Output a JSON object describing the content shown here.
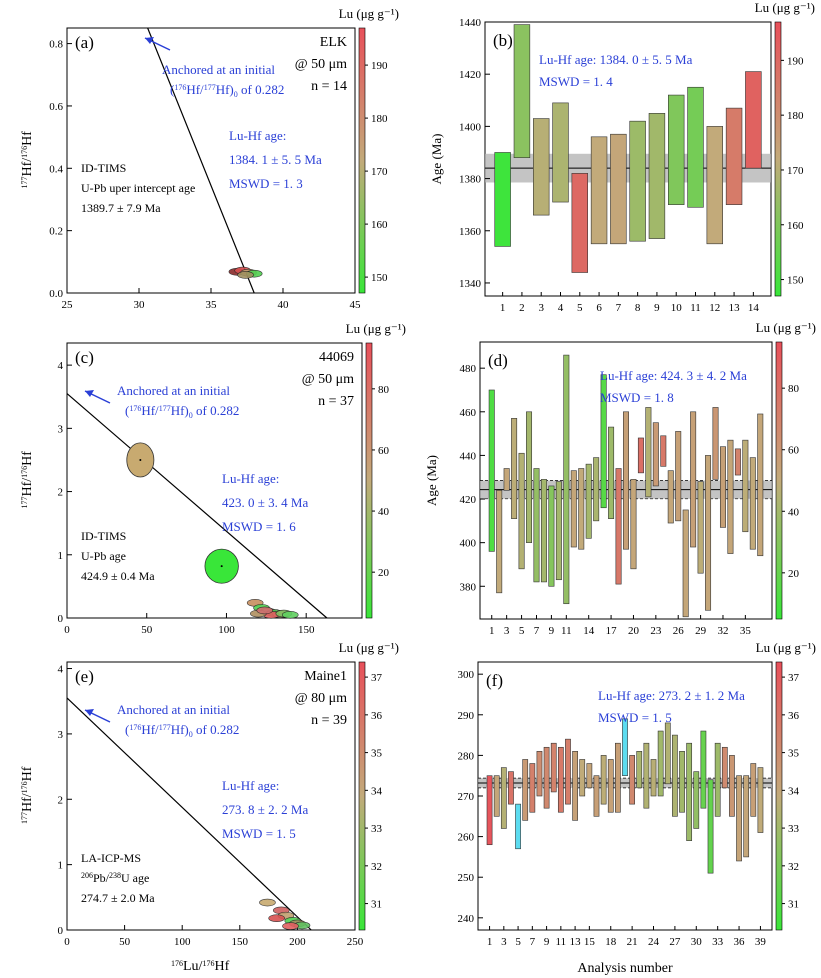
{
  "figure": {
    "xlabel_bottom": "Analysis number",
    "colorbar_title": "Lu (μg g⁻¹)",
    "colors": {
      "low": "#39e639",
      "mid": "#c2aa7a",
      "high": "#e8505a",
      "annot": "#2a3fd6",
      "cyan": "#5cdcf0"
    }
  },
  "chart_data": [
    {
      "id": "a",
      "type": "scatter",
      "panel_label": "(a)",
      "sample": "ELK",
      "spot": "@ 50  μm",
      "n": "n = 14",
      "xlim": [
        25,
        45
      ],
      "ylim": [
        0,
        0.85
      ],
      "xticks": [
        25,
        30,
        35,
        40,
        45
      ],
      "yticks": [
        0.0,
        0.2,
        0.4,
        0.6,
        0.8
      ],
      "ylabel": "177Hf/176Hf",
      "anchor_text": [
        "Anchored at an initial",
        "(176Hf/177Hf)0 of 0.282"
      ],
      "ref_text": [
        "ID-TIMS",
        "U-Pb uper intercept age",
        "1389.7 ± 7.9 Ma"
      ],
      "age_text": [
        "Lu-Hf age:",
        "1384. 1  ±  5. 5  Ma",
        "MSWD = 1. 3"
      ],
      "isochron": [
        [
          30.6,
          0.85
        ],
        [
          38.0,
          0.0
        ]
      ],
      "ellipses": [
        [
          36.8,
          0.068,
          "#8a2a2a"
        ],
        [
          37.2,
          0.072,
          "#d85050"
        ],
        [
          37.6,
          0.065,
          "#c0a070"
        ],
        [
          38.0,
          0.062,
          "#50d050"
        ],
        [
          37.4,
          0.058,
          "#a09060"
        ]
      ],
      "colorbar": {
        "min": 147,
        "max": 197,
        "ticks": [
          150,
          160,
          170,
          180,
          190
        ]
      }
    },
    {
      "id": "b",
      "type": "bar",
      "panel_label": "(b)",
      "ylabel": "Age (Ma)",
      "ylim": [
        1335,
        1440
      ],
      "yticks": [
        1340,
        1360,
        1380,
        1400,
        1420,
        1440
      ],
      "xticks": [
        "1",
        "2",
        "3",
        "4",
        "5",
        "6",
        "7",
        "8",
        "9",
        "10",
        "11",
        "12",
        "13",
        "14"
      ],
      "age_text": [
        "Lu-Hf age: 1384. 0  ±  5. 5  Ma",
        "MSWD = 1. 4"
      ],
      "mean": 1384.0,
      "err": 5.5,
      "bars": [
        [
          1354,
          1390,
          148
        ],
        [
          1388,
          1439,
          162
        ],
        [
          1366,
          1403,
          170
        ],
        [
          1371,
          1409,
          168
        ],
        [
          1344,
          1382,
          190
        ],
        [
          1355,
          1396,
          172
        ],
        [
          1355,
          1397,
          173
        ],
        [
          1356,
          1402,
          165
        ],
        [
          1357,
          1405,
          166
        ],
        [
          1370,
          1412,
          160
        ],
        [
          1369,
          1415,
          158
        ],
        [
          1355,
          1400,
          172
        ],
        [
          1370,
          1407,
          185
        ],
        [
          1384,
          1421,
          192
        ]
      ],
      "colorbar": {
        "min": 147,
        "max": 197,
        "ticks": [
          150,
          160,
          170,
          180,
          190
        ]
      }
    },
    {
      "id": "c",
      "type": "scatter",
      "panel_label": "(c)",
      "sample": "44069",
      "spot": "@ 50  μm",
      "n": "n = 37",
      "xlim": [
        0,
        185
      ],
      "ylim": [
        0,
        4.35
      ],
      "xticks": [
        0,
        50,
        100,
        150
      ],
      "yticks": [
        0,
        1,
        2,
        3,
        4
      ],
      "ylabel": "177Hf/176Hf",
      "anchor_text": [
        "Anchored at an  initial",
        "(176Hf/177Hf)0 of 0.282"
      ],
      "ref_text": [
        "ID-TIMS",
        "U-Pb age",
        "424.9 ± 0.4 Ma"
      ],
      "age_text": [
        "Lu-Hf age:",
        "423. 0  ±  3. 4  Ma",
        "MSWD = 1. 6"
      ],
      "isochron": [
        [
          0,
          3.55
        ],
        [
          163,
          0.0
        ]
      ],
      "big_ellipses": [
        [
          46,
          2.5,
          8.5,
          0.27,
          "#c8aa70"
        ],
        [
          97,
          0.82,
          10.5,
          0.27,
          "#39e639"
        ]
      ],
      "ellipses": [
        [
          118,
          0.24,
          "#c89060"
        ],
        [
          122,
          0.16,
          "#50d050"
        ],
        [
          126,
          0.1,
          "#a09060"
        ],
        [
          130,
          0.08,
          "#50c050"
        ],
        [
          134,
          0.06,
          "#c0a070"
        ],
        [
          128,
          0.05,
          "#e06060"
        ],
        [
          136,
          0.07,
          "#80c060"
        ],
        [
          120,
          0.07,
          "#b09060"
        ],
        [
          140,
          0.05,
          "#60d060"
        ],
        [
          124,
          0.12,
          "#d07070"
        ]
      ],
      "colorbar": {
        "min": 5,
        "max": 95,
        "ticks": [
          20,
          40,
          60,
          80
        ]
      }
    },
    {
      "id": "d",
      "type": "bar",
      "panel_label": "(d)",
      "ylabel": "Age (Ma)",
      "ylim": [
        365,
        492
      ],
      "yticks": [
        380,
        400,
        420,
        440,
        460,
        480
      ],
      "xticks": [
        "1",
        "3",
        "5",
        "7",
        "9",
        "11",
        "14",
        "17",
        "20",
        "23",
        "26",
        "29",
        "32",
        "35"
      ],
      "age_text": [
        "Lu-Hf age: 424. 3  ±  4. 2  Ma",
        "MSWD = 1. 8"
      ],
      "mean": 424.3,
      "err": 4.2,
      "bars": [
        [
          396,
          470,
          12
        ],
        [
          377,
          424,
          50
        ],
        [
          424,
          434,
          52
        ],
        [
          411,
          457,
          48
        ],
        [
          388,
          441,
          45
        ],
        [
          400,
          460,
          40
        ],
        [
          382,
          434,
          35
        ],
        [
          382,
          429,
          40
        ],
        [
          380,
          426,
          30
        ],
        [
          383,
          428,
          40
        ],
        [
          372,
          486,
          35
        ],
        [
          398,
          433,
          52
        ],
        [
          397,
          434,
          50
        ],
        [
          402,
          436,
          40
        ],
        [
          410,
          439,
          42
        ],
        [
          416,
          477,
          15
        ],
        [
          411,
          453,
          38
        ],
        [
          381,
          434,
          75
        ],
        [
          397,
          460,
          55
        ],
        [
          388,
          429,
          52
        ],
        [
          432,
          448,
          80
        ],
        [
          421,
          462,
          45
        ],
        [
          426,
          455,
          58
        ],
        [
          435,
          449,
          75
        ],
        [
          409,
          433,
          52
        ],
        [
          410,
          451,
          55
        ],
        [
          366,
          415,
          52
        ],
        [
          398,
          460,
          55
        ],
        [
          386,
          428,
          48
        ],
        [
          369,
          440,
          52
        ],
        [
          429,
          462,
          60
        ],
        [
          407,
          444,
          55
        ],
        [
          395,
          447,
          52
        ],
        [
          431,
          443,
          70
        ],
        [
          405,
          447,
          48
        ],
        [
          397,
          439,
          50
        ],
        [
          394,
          459,
          52
        ]
      ],
      "colorbar": {
        "min": 5,
        "max": 95,
        "ticks": [
          20,
          40,
          60,
          80
        ]
      }
    },
    {
      "id": "e",
      "type": "scatter",
      "panel_label": "(e)",
      "sample": "Maine1",
      "spot": "@ 80  μm",
      "n": "n = 39",
      "xlim": [
        0,
        250
      ],
      "ylim": [
        0,
        4.1
      ],
      "xticks": [
        0,
        50,
        100,
        150,
        200,
        250
      ],
      "yticks": [
        0,
        1,
        2,
        3,
        4
      ],
      "xlabel": "176Lu/176Hf",
      "ylabel": "177Hf/176Hf",
      "anchor_text": [
        "Anchored at an  initial",
        "(176Hf/177Hf)0 of 0.282"
      ],
      "ref_text": [
        "LA-ICP-MS",
        "206Pb/238U age",
        "274.7 ± 2.0 Ma"
      ],
      "age_text": [
        "Lu-Hf age:",
        "273. 8  ±  2. 2  Ma",
        "MSWD = 1. 5"
      ],
      "isochron": [
        [
          0,
          3.55
        ],
        [
          212,
          0.0
        ]
      ],
      "ellipses": [
        [
          174,
          0.42,
          "#c8aa70"
        ],
        [
          186,
          0.3,
          "#d06060"
        ],
        [
          190,
          0.22,
          "#c0a070"
        ],
        [
          196,
          0.14,
          "#50d050"
        ],
        [
          200,
          0.1,
          "#a09060"
        ],
        [
          204,
          0.07,
          "#60c060"
        ],
        [
          182,
          0.18,
          "#d85050"
        ],
        [
          194,
          0.06,
          "#e06060"
        ]
      ],
      "colorbar": {
        "min": 30.3,
        "max": 37.4,
        "ticks": [
          31,
          32,
          33,
          34,
          35,
          36,
          37
        ]
      }
    },
    {
      "id": "f",
      "type": "bar",
      "panel_label": "(f)",
      "ylabel": "",
      "ylim": [
        237,
        303
      ],
      "yticks": [
        240,
        250,
        260,
        270,
        280,
        290,
        300
      ],
      "xticks": [
        "1",
        "3",
        "5",
        "7",
        "9",
        "11",
        "13",
        "15",
        "18",
        "21",
        "24",
        "27",
        "30",
        "33",
        "36",
        "39"
      ],
      "xlabel": "Analysis number",
      "age_text": [
        "Lu-Hf age: 273. 2  ±  1. 2  Ma",
        "MSWD = 1. 5"
      ],
      "mean": 273.2,
      "err": 1.2,
      "bars": [
        [
          258,
          275,
          37.2
        ],
        [
          265,
          275,
          34.0
        ],
        [
          262,
          277,
          33.5
        ],
        [
          268,
          276,
          36.0
        ],
        [
          257,
          268,
          "cyan"
        ],
        [
          264,
          279,
          34.5
        ],
        [
          266,
          278,
          35.5
        ],
        [
          270,
          281,
          35.0
        ],
        [
          267,
          282,
          35.2
        ],
        [
          271,
          283,
          35.4
        ],
        [
          266,
          282,
          35.8
        ],
        [
          268,
          284,
          35.6
        ],
        [
          264,
          281,
          34.2
        ],
        [
          270,
          279,
          33.8
        ],
        [
          272,
          278,
          34.1
        ],
        [
          265,
          275,
          34.3
        ],
        [
          268,
          280,
          33.7
        ],
        [
          266,
          279,
          34.2
        ],
        [
          266,
          283,
          34.3
        ],
        [
          275,
          289,
          "cyan"
        ],
        [
          268,
          280,
          35.2
        ],
        [
          272,
          281,
          33.2
        ],
        [
          267,
          283,
          33.4
        ],
        [
          270,
          279,
          33.6
        ],
        [
          270,
          286,
          33.0
        ],
        [
          273,
          288,
          33.4
        ],
        [
          265,
          285,
          33.3
        ],
        [
          266,
          281,
          33.0
        ],
        [
          259,
          283,
          32.9
        ],
        [
          262,
          276,
          32.6
        ],
        [
          267,
          286,
          31.5
        ],
        [
          251,
          274,
          31.4
        ],
        [
          265,
          283,
          32.9
        ],
        [
          272,
          282,
          35.1
        ],
        [
          265,
          280,
          34.6
        ],
        [
          254,
          275,
          34.1
        ],
        [
          255,
          275,
          34.0
        ],
        [
          265,
          278,
          34.3
        ],
        [
          261,
          277,
          33.8
        ]
      ],
      "colorbar": {
        "min": 30.3,
        "max": 37.4,
        "ticks": [
          31,
          32,
          33,
          34,
          35,
          36,
          37
        ]
      }
    }
  ]
}
